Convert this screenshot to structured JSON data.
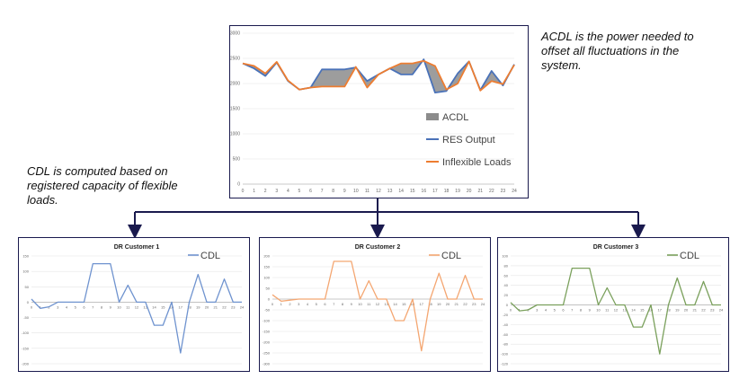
{
  "colors": {
    "frame": "#1a1a4e",
    "connector": "#1a1a4e",
    "res": "#4a72b8",
    "inflex": "#ed7d31",
    "acdl_fill": "#8c8c8c",
    "c1": "#6f93cf",
    "c2": "#f4a671",
    "c3": "#7aa05c",
    "axis_text": "#666666"
  },
  "notes": {
    "acdl": [
      "ACDL is the power needed to",
      "offset all fluctuations in the",
      "system."
    ],
    "cdl": [
      "CDL is computed based on",
      "registered capacity of flexible",
      "loads."
    ]
  },
  "chart_data": [
    {
      "type": "line",
      "title": "",
      "x": [
        0,
        1,
        2,
        3,
        4,
        5,
        6,
        7,
        8,
        9,
        10,
        11,
        12,
        13,
        14,
        15,
        16,
        17,
        18,
        19,
        20,
        21,
        22,
        23,
        24
      ],
      "y_ticks": [
        0,
        500,
        1000,
        1500,
        2000,
        2500,
        3000
      ],
      "ylim": [
        0,
        3000
      ],
      "legend": [
        "ACDL",
        "RES Output",
        "Inflexible Loads"
      ],
      "legend_position": "right",
      "series": [
        {
          "name": "RES Output",
          "values": [
            2400,
            2300,
            2150,
            2420,
            2050,
            1880,
            1920,
            2280,
            2280,
            2280,
            2320,
            2050,
            2180,
            2300,
            2180,
            2180,
            2480,
            1820,
            1850,
            2200,
            2440,
            1870,
            2250,
            1960,
            2380
          ]
        },
        {
          "name": "Inflexible Loads",
          "values": [
            2400,
            2350,
            2200,
            2430,
            2060,
            1880,
            1920,
            1940,
            1940,
            1940,
            2330,
            1920,
            2180,
            2300,
            2400,
            2400,
            2450,
            2350,
            1880,
            2000,
            2440,
            1860,
            2050,
            1990,
            2370
          ]
        }
      ]
    },
    {
      "type": "line",
      "title": "DR Customer 1",
      "legend": [
        "CDL"
      ],
      "legend_position": "top-right",
      "x": [
        0,
        1,
        2,
        3,
        4,
        5,
        6,
        7,
        8,
        9,
        10,
        11,
        12,
        13,
        14,
        15,
        16,
        17,
        18,
        19,
        20,
        21,
        22,
        23,
        24
      ],
      "y_ticks": [
        150,
        100,
        50,
        0,
        -50,
        -100,
        -150,
        -200
      ],
      "ylim": [
        -200,
        150
      ],
      "series": [
        {
          "name": "CDL",
          "values": [
            10,
            -20,
            -15,
            0,
            0,
            0,
            0,
            125,
            125,
            125,
            0,
            55,
            0,
            0,
            -75,
            -75,
            0,
            -165,
            0,
            90,
            0,
            0,
            75,
            0,
            0
          ]
        }
      ]
    },
    {
      "type": "line",
      "title": "DR Customer 2",
      "legend": [
        "CDL"
      ],
      "legend_position": "top-right",
      "x": [
        0,
        1,
        2,
        3,
        4,
        5,
        6,
        7,
        8,
        9,
        10,
        11,
        12,
        13,
        14,
        15,
        16,
        17,
        18,
        19,
        20,
        21,
        22,
        23,
        24
      ],
      "y_ticks": [
        200,
        150,
        100,
        50,
        0,
        -50,
        -100,
        -150,
        -200,
        -250,
        -300
      ],
      "ylim": [
        -300,
        200
      ],
      "series": [
        {
          "name": "CDL",
          "values": [
            20,
            -10,
            -5,
            0,
            0,
            0,
            0,
            175,
            175,
            175,
            0,
            85,
            0,
            0,
            -100,
            -100,
            0,
            -240,
            0,
            120,
            0,
            0,
            110,
            0,
            0
          ]
        }
      ]
    },
    {
      "type": "line",
      "title": "DR Customer 3",
      "legend": [
        "CDL"
      ],
      "legend_position": "top-right",
      "x": [
        0,
        1,
        2,
        3,
        4,
        5,
        6,
        7,
        8,
        9,
        10,
        11,
        12,
        13,
        14,
        15,
        16,
        17,
        18,
        19,
        20,
        21,
        22,
        23,
        24
      ],
      "y_ticks": [
        100,
        80,
        60,
        40,
        20,
        0,
        -20,
        -40,
        -60,
        -80,
        -100,
        -120
      ],
      "ylim": [
        -120,
        100
      ],
      "series": [
        {
          "name": "CDL",
          "values": [
            5,
            -12,
            -10,
            0,
            0,
            0,
            0,
            75,
            75,
            75,
            0,
            35,
            0,
            0,
            -45,
            -45,
            0,
            -100,
            0,
            55,
            0,
            0,
            48,
            0,
            0
          ]
        }
      ]
    }
  ]
}
